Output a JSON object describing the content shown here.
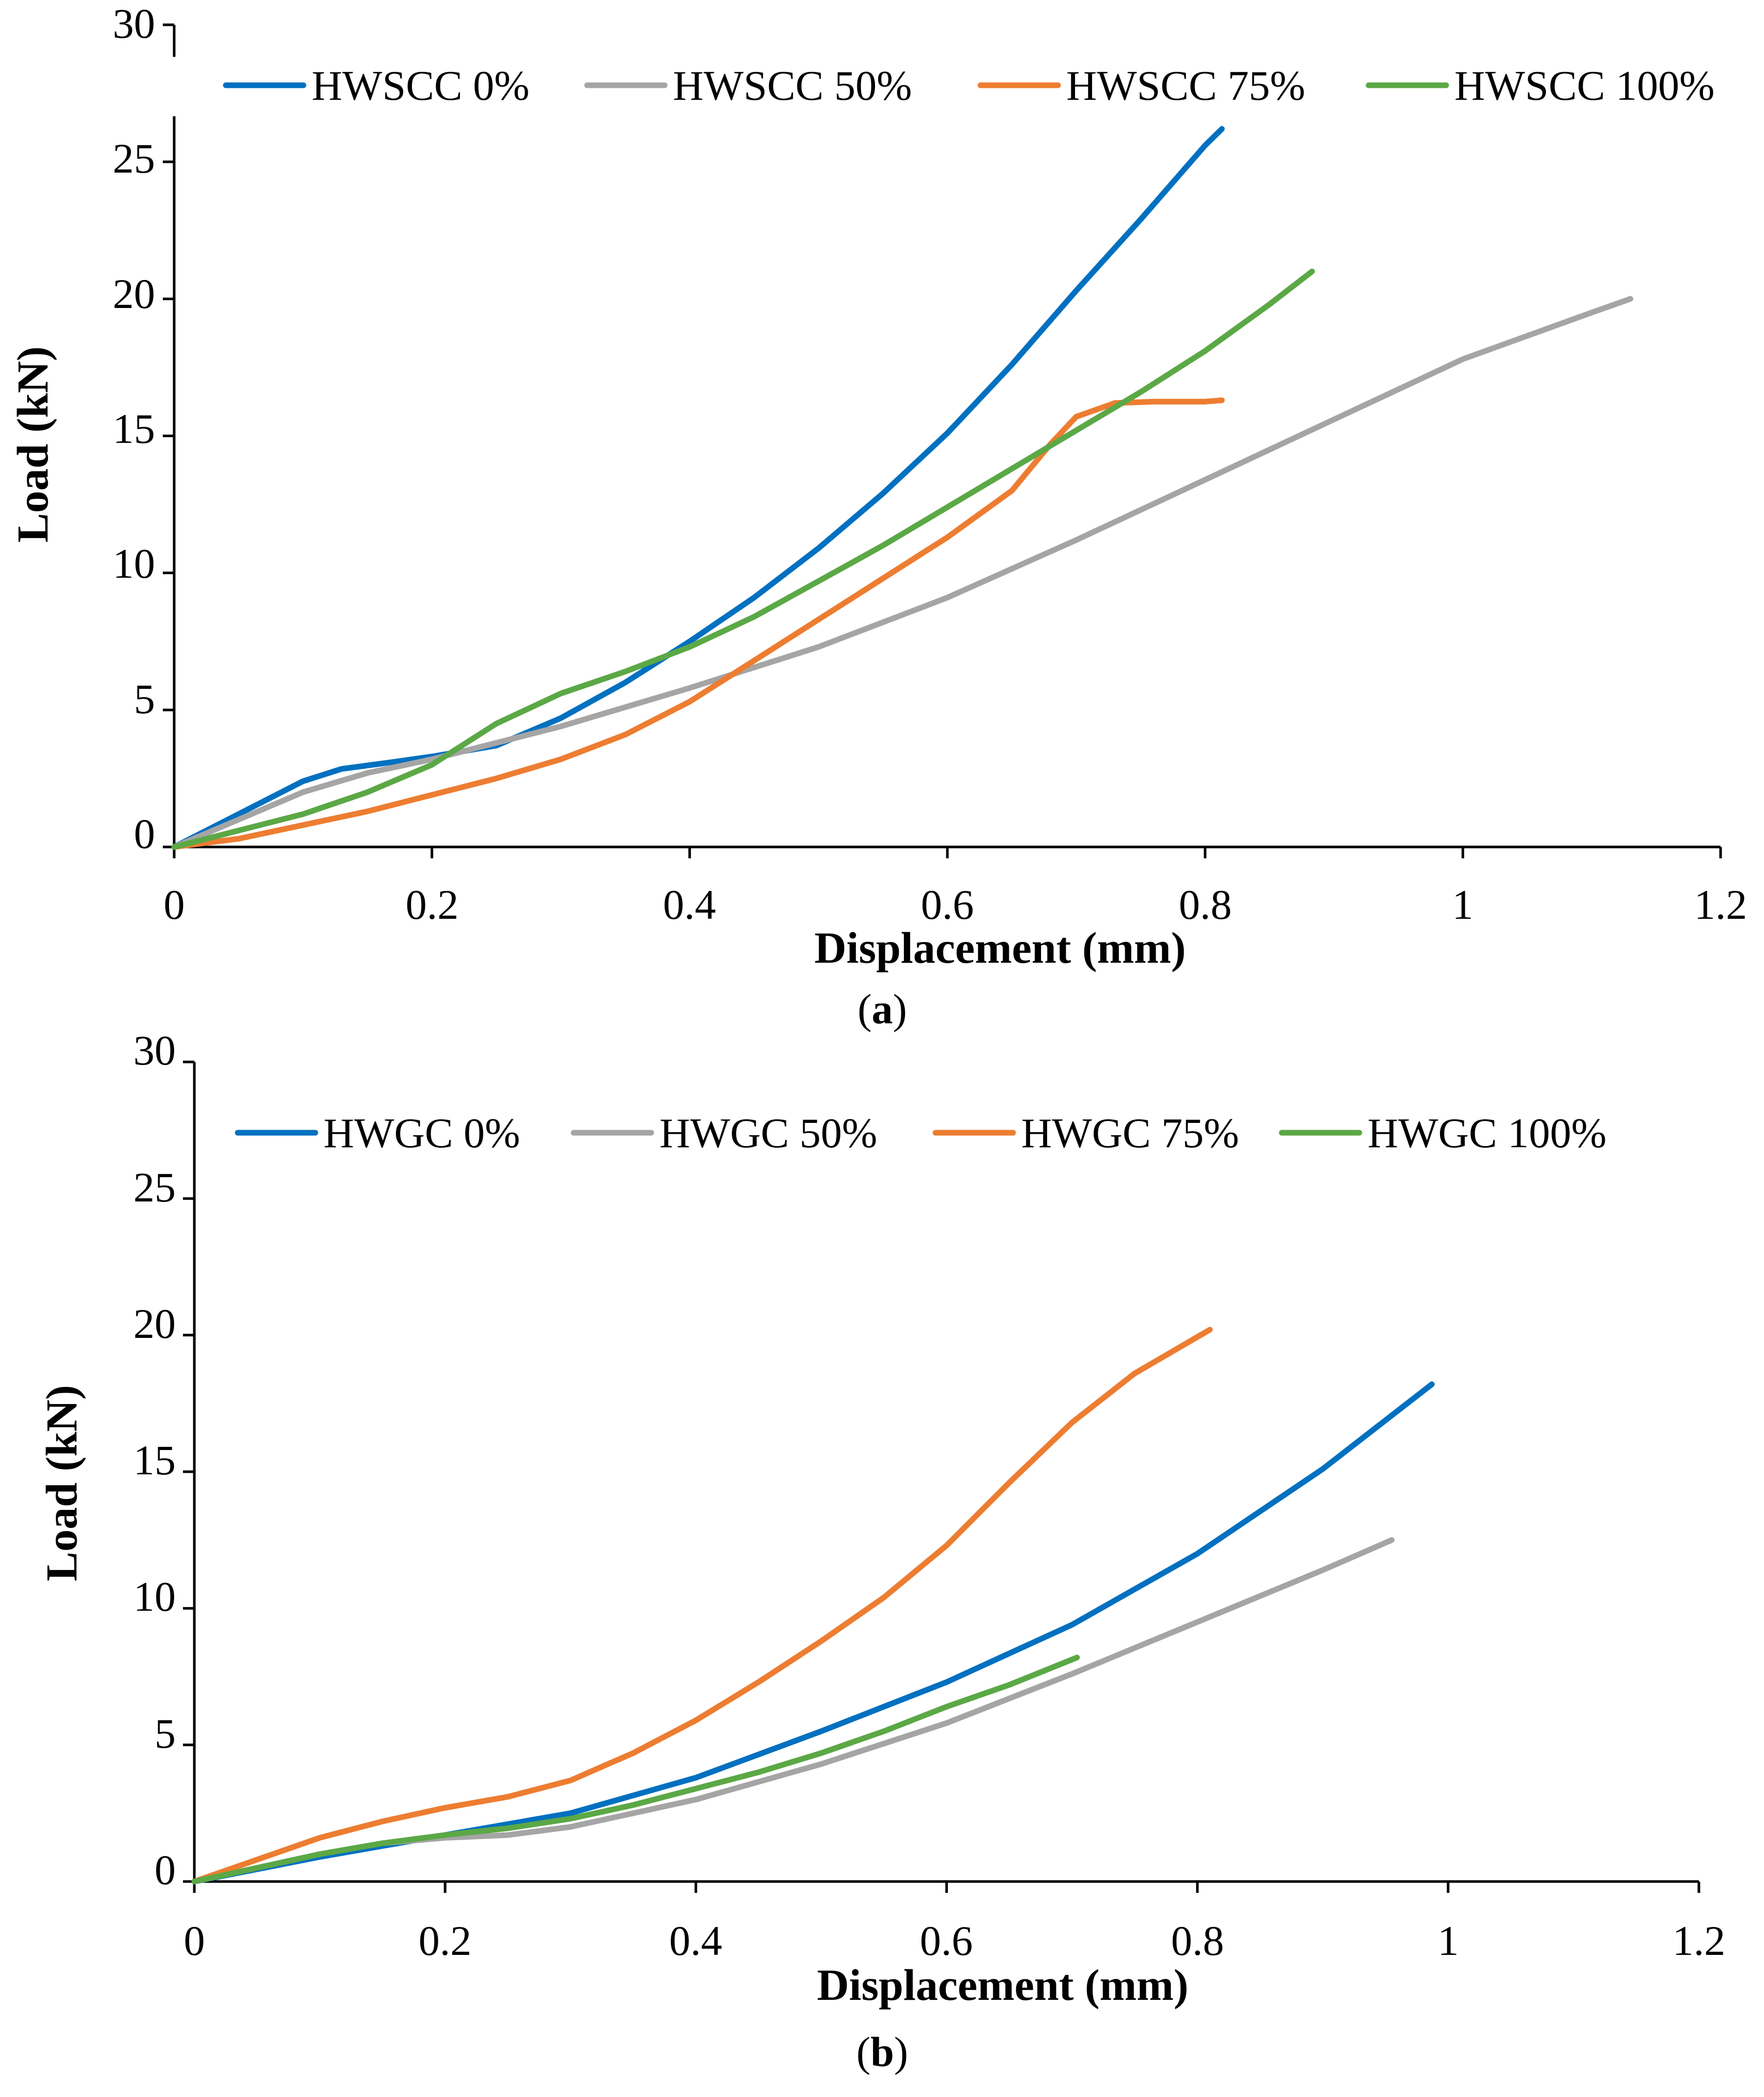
{
  "figure": {
    "panels": [
      {
        "caption_open": "(",
        "caption_letter": "a",
        "caption_close": ")"
      },
      {
        "caption_open": "(",
        "caption_letter": "b",
        "caption_close": ")"
      }
    ]
  },
  "chart_data": [
    {
      "type": "line",
      "xlabel": "Displacement (mm)",
      "ylabel": "Load (kN)",
      "xlim": [
        0,
        1.2
      ],
      "ylim": [
        0,
        30
      ],
      "xticks": [
        "0",
        "0.2",
        "0.4",
        "0.6",
        "0.8",
        "1",
        "1.2"
      ],
      "yticks": [
        "0",
        "5",
        "10",
        "15",
        "20",
        "25",
        "30"
      ],
      "grid": false,
      "legend": "top",
      "series": [
        {
          "name": "HWSCC 0%",
          "color": "#0070C0",
          "x": [
            0,
            0.05,
            0.1,
            0.13,
            0.17,
            0.2,
            0.25,
            0.3,
            0.35,
            0.4,
            0.45,
            0.5,
            0.55,
            0.6,
            0.65,
            0.7,
            0.75,
            0.8,
            0.813
          ],
          "y": [
            0,
            1.2,
            2.4,
            2.85,
            3.1,
            3.3,
            3.7,
            4.7,
            6.0,
            7.5,
            9.1,
            10.9,
            12.9,
            15.1,
            17.6,
            20.3,
            22.9,
            25.6,
            26.2
          ]
        },
        {
          "name": "HWSCC 50%",
          "color": "#A5A5A5",
          "x": [
            0,
            0.05,
            0.1,
            0.15,
            0.2,
            0.3,
            0.4,
            0.5,
            0.6,
            0.7,
            0.8,
            0.9,
            1.0,
            1.1,
            1.13
          ],
          "y": [
            0,
            1.0,
            2.0,
            2.7,
            3.2,
            4.4,
            5.8,
            7.3,
            9.1,
            11.2,
            13.4,
            15.6,
            17.8,
            19.5,
            20.0
          ]
        },
        {
          "name": "HWSCC 75%",
          "color": "#ED7D31",
          "x": [
            0,
            0.05,
            0.1,
            0.15,
            0.2,
            0.25,
            0.3,
            0.35,
            0.4,
            0.45,
            0.5,
            0.55,
            0.6,
            0.65,
            0.68,
            0.7,
            0.73,
            0.76,
            0.8,
            0.813
          ],
          "y": [
            0,
            0.3,
            0.8,
            1.3,
            1.9,
            2.5,
            3.2,
            4.1,
            5.3,
            6.8,
            8.3,
            9.8,
            11.3,
            13.0,
            14.7,
            15.7,
            16.2,
            16.25,
            16.25,
            16.3
          ]
        },
        {
          "name": "HWSCC 100%",
          "color": "#5BA846",
          "x": [
            0,
            0.05,
            0.1,
            0.15,
            0.2,
            0.25,
            0.3,
            0.35,
            0.4,
            0.45,
            0.5,
            0.55,
            0.6,
            0.65,
            0.7,
            0.75,
            0.8,
            0.85,
            0.883
          ],
          "y": [
            0,
            0.6,
            1.2,
            2.0,
            3.0,
            4.5,
            5.6,
            6.4,
            7.3,
            8.4,
            9.7,
            11.0,
            12.4,
            13.8,
            15.2,
            16.6,
            18.1,
            19.8,
            21.0
          ]
        }
      ]
    },
    {
      "type": "line",
      "xlabel": "Displacement (mm)",
      "ylabel": "Load (kN)",
      "xlim": [
        0,
        1.2
      ],
      "ylim": [
        0,
        30
      ],
      "xticks": [
        "0",
        "0.2",
        "0.4",
        "0.6",
        "0.8",
        "1",
        "1.2"
      ],
      "yticks": [
        "0",
        "5",
        "10",
        "15",
        "20",
        "25",
        "30"
      ],
      "grid": false,
      "legend": "top",
      "series": [
        {
          "name": "HWGC 0%",
          "color": "#0070C0",
          "x": [
            0,
            0.1,
            0.2,
            0.3,
            0.4,
            0.5,
            0.6,
            0.7,
            0.8,
            0.9,
            0.987
          ],
          "y": [
            0,
            0.9,
            1.7,
            2.5,
            3.8,
            5.5,
            7.3,
            9.4,
            12.0,
            15.1,
            18.2
          ]
        },
        {
          "name": "HWGC 50%",
          "color": "#A5A5A5",
          "x": [
            0,
            0.05,
            0.1,
            0.15,
            0.2,
            0.25,
            0.3,
            0.4,
            0.5,
            0.6,
            0.7,
            0.8,
            0.9,
            0.955
          ],
          "y": [
            0,
            0.5,
            1.0,
            1.4,
            1.6,
            1.7,
            2.0,
            3.0,
            4.3,
            5.8,
            7.6,
            9.5,
            11.4,
            12.5
          ]
        },
        {
          "name": "HWGC 75%",
          "color": "#ED7D31",
          "x": [
            0,
            0.05,
            0.1,
            0.15,
            0.2,
            0.25,
            0.3,
            0.35,
            0.4,
            0.45,
            0.5,
            0.55,
            0.6,
            0.65,
            0.7,
            0.75,
            0.81
          ],
          "y": [
            0,
            0.8,
            1.6,
            2.2,
            2.7,
            3.1,
            3.7,
            4.7,
            5.9,
            7.3,
            8.8,
            10.4,
            12.3,
            14.6,
            16.8,
            18.6,
            20.2
          ]
        },
        {
          "name": "HWGC 100%",
          "color": "#5BA846",
          "x": [
            0,
            0.05,
            0.1,
            0.15,
            0.2,
            0.25,
            0.3,
            0.35,
            0.4,
            0.45,
            0.5,
            0.55,
            0.6,
            0.65,
            0.704
          ],
          "y": [
            0,
            0.5,
            1.0,
            1.4,
            1.7,
            1.95,
            2.3,
            2.8,
            3.4,
            4.0,
            4.7,
            5.5,
            6.4,
            7.2,
            8.2
          ]
        }
      ]
    }
  ]
}
